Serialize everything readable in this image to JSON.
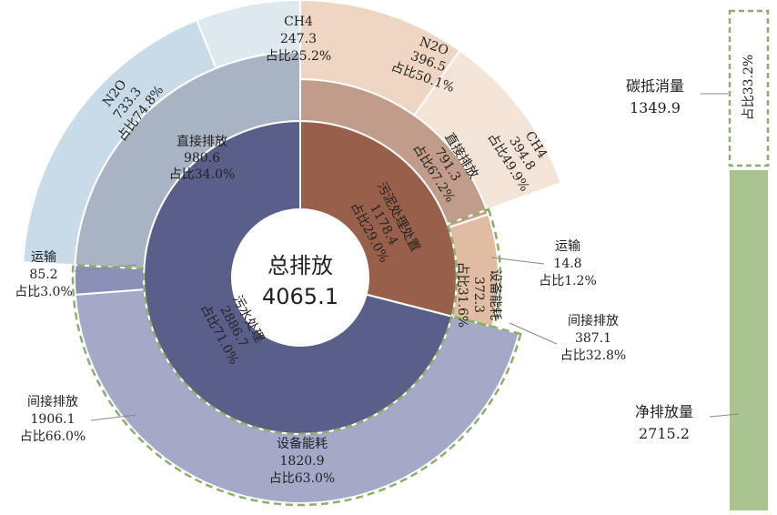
{
  "chart_data": {
    "type": "sunburst",
    "center": {
      "title": "总排放",
      "value": "4065.1"
    },
    "inner_ring": [
      {
        "name": "污水处理",
        "value": 2886.7,
        "percent": "占比71.0%",
        "color": "#5a5f8a"
      },
      {
        "name": "污泥处理处置",
        "value": 1178.4,
        "percent": "占比29.0%",
        "color": "#98604a"
      }
    ],
    "middle_ring": [
      {
        "name": "直接排放",
        "value": 980.6,
        "percent": "占比34.0%",
        "parent": "污水处理",
        "color": "#a8b4c3"
      },
      {
        "name": "运输",
        "value": 85.2,
        "percent": "占比3.0%",
        "parent": "污水处理",
        "color": "#8b90b8"
      },
      {
        "name": "设备能耗",
        "value": 1820.9,
        "percent": "占比63.0%",
        "parent": "污水处理",
        "color": "#a4a9c7"
      },
      {
        "name": "直接排放",
        "value": 791.3,
        "percent": "占比67.2%",
        "parent": "污泥处理处置",
        "color": "#c19c8a"
      },
      {
        "name": "设备能耗",
        "value": 372.3,
        "percent": "占比31.6%",
        "parent": "污泥处理处置",
        "color": "#dfbca2"
      },
      {
        "name": "运输",
        "value": 14.8,
        "percent": "占比1.2%",
        "parent": "污泥处理处置",
        "color": "#c4a08e"
      }
    ],
    "outer_ring": [
      {
        "name": "N2O",
        "value": 733.3,
        "percent": "占比74.8%",
        "parent": "直接排放",
        "color": "#c9dbe8"
      },
      {
        "name": "CH4",
        "value": 247.3,
        "percent": "占比25.2%",
        "parent": "直接排放",
        "color": "#dde8ef"
      },
      {
        "name": "N2O",
        "value": 396.5,
        "percent": "占比50.1%",
        "parent": "直接排放",
        "color": "#eed6c3"
      },
      {
        "name": "CH4",
        "value": 394.8,
        "percent": "占比49.9%",
        "parent": "直接排放",
        "color": "#f4e4d7"
      }
    ],
    "indirect_groups": [
      {
        "name": "间接排放",
        "value": 1906.1,
        "percent": "占比66.0%"
      },
      {
        "name": "间接排放",
        "value": 387.1,
        "percent": "占比32.8%"
      }
    ],
    "side_bar": [
      {
        "name": "碳抵消量",
        "value": 1349.9,
        "percent": "占比33.2%",
        "color": "#ffffff"
      },
      {
        "name": "净排放量",
        "value": 2715.2,
        "percent": "",
        "color": "#a9c391"
      }
    ],
    "dashed_color": "#8fae6a"
  }
}
